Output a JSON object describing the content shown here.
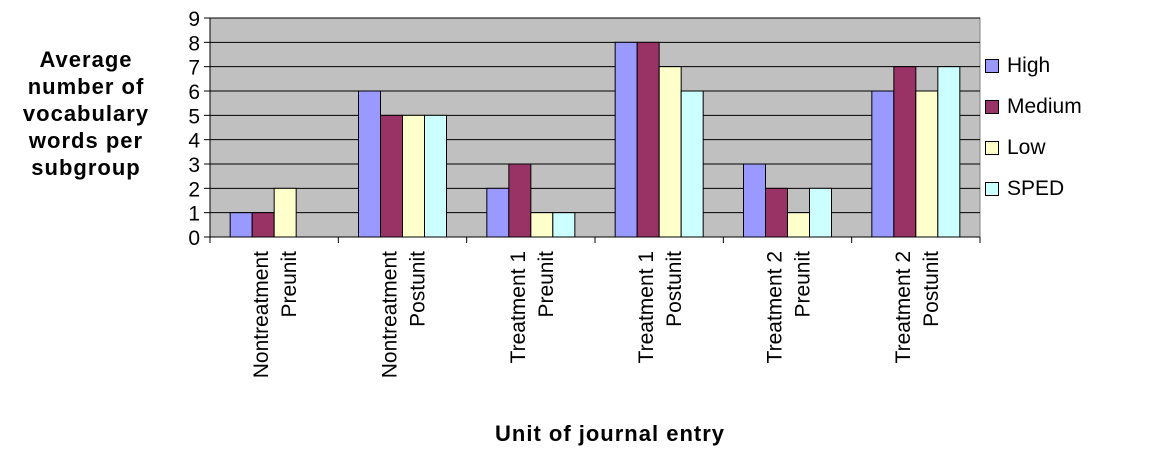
{
  "chart_data": {
    "type": "bar",
    "ylabel_lines": [
      "Average",
      "number of",
      "vocabulary",
      "words per",
      "subgroup"
    ],
    "xlabel": "Unit of journal entry",
    "categories": [
      [
        "Nontreatment",
        "Preunit"
      ],
      [
        "Nontreatment",
        "Postunit"
      ],
      [
        "Treatment 1",
        "Preunit"
      ],
      [
        "Treatment 1",
        "Postunit"
      ],
      [
        "Treatment 2",
        "Preunit"
      ],
      [
        "Treatment 2",
        "Postunit"
      ]
    ],
    "series": [
      {
        "name": "High",
        "color": "#9999FF",
        "values": [
          1,
          6,
          2,
          8,
          3,
          6
        ]
      },
      {
        "name": "Medium",
        "color": "#993366",
        "values": [
          1,
          5,
          3,
          8,
          2,
          7
        ]
      },
      {
        "name": "Low",
        "color": "#FFFFCC",
        "values": [
          2,
          5,
          1,
          7,
          1,
          6
        ]
      },
      {
        "name": "SPED",
        "color": "#CCFFFF",
        "values": [
          0,
          5,
          1,
          6,
          2,
          7
        ]
      }
    ],
    "yticks": [
      "0",
      "1",
      "2",
      "3",
      "4",
      "5",
      "6",
      "7",
      "8",
      "9"
    ],
    "ylim": [
      0,
      9
    ],
    "grid": true,
    "plot_background": "#C0C0C0",
    "legend_position": "right"
  }
}
